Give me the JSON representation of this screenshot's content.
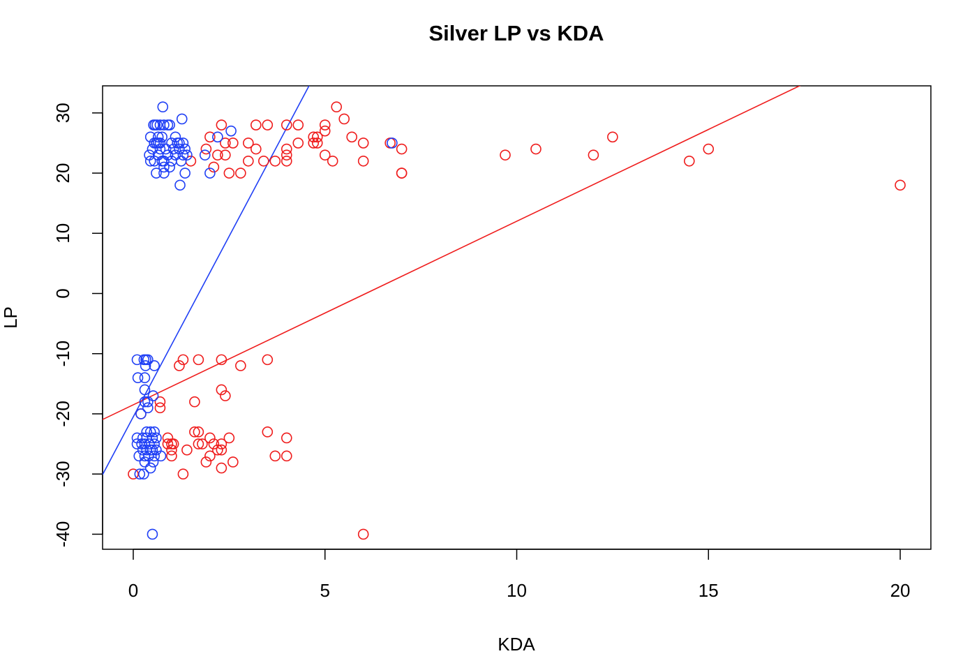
{
  "chart_data": {
    "type": "scatter",
    "title": "Silver LP vs KDA",
    "xlabel": "KDA",
    "ylabel": "LP",
    "xlim": [
      -0.8,
      20.8
    ],
    "ylim": [
      -42.5,
      34.5
    ],
    "x_ticks": [
      0,
      5,
      10,
      15,
      20
    ],
    "y_ticks": [
      -40,
      -30,
      -20,
      -10,
      0,
      10,
      20,
      30
    ],
    "x_tick_labels": [
      "0",
      "5",
      "10",
      "15",
      "20"
    ],
    "y_tick_labels": [
      "-40",
      "-30",
      "-20",
      "-10",
      "0",
      "10",
      "20",
      "30"
    ],
    "grid": false,
    "legend": "none",
    "marker": "open-circle",
    "colors": {
      "blue": "#1f3ff5",
      "red": "#ef1c1c"
    },
    "series": [
      {
        "color": "#1f3ff5",
        "points": [
          [
            0.77,
            31
          ],
          [
            1.27,
            29
          ],
          [
            0.53,
            28
          ],
          [
            0.57,
            28
          ],
          [
            0.62,
            28
          ],
          [
            0.7,
            28
          ],
          [
            0.8,
            28
          ],
          [
            0.9,
            28
          ],
          [
            0.95,
            28
          ],
          [
            2.55,
            27
          ],
          [
            0.45,
            26
          ],
          [
            0.65,
            26
          ],
          [
            0.75,
            26
          ],
          [
            1.1,
            26
          ],
          [
            2.2,
            26
          ],
          [
            0.55,
            25
          ],
          [
            0.6,
            25
          ],
          [
            0.65,
            25
          ],
          [
            0.7,
            25
          ],
          [
            1.0,
            25
          ],
          [
            1.15,
            25
          ],
          [
            1.2,
            25
          ],
          [
            1.3,
            25
          ],
          [
            6.75,
            25
          ],
          [
            0.5,
            24
          ],
          [
            0.7,
            24
          ],
          [
            0.85,
            24
          ],
          [
            1.05,
            24
          ],
          [
            1.2,
            24
          ],
          [
            1.35,
            24
          ],
          [
            0.42,
            23
          ],
          [
            0.65,
            23
          ],
          [
            0.9,
            23
          ],
          [
            1.1,
            23
          ],
          [
            1.3,
            23
          ],
          [
            1.4,
            23
          ],
          [
            1.87,
            23
          ],
          [
            0.45,
            22
          ],
          [
            0.55,
            22
          ],
          [
            0.75,
            22
          ],
          [
            0.8,
            22
          ],
          [
            1.0,
            22
          ],
          [
            1.25,
            22
          ],
          [
            0.8,
            21
          ],
          [
            0.95,
            21
          ],
          [
            0.6,
            20
          ],
          [
            0.8,
            20
          ],
          [
            1.35,
            20
          ],
          [
            2.0,
            20
          ],
          [
            1.22,
            18
          ],
          [
            0.1,
            -11
          ],
          [
            0.28,
            -11
          ],
          [
            0.33,
            -11
          ],
          [
            0.38,
            -11
          ],
          [
            0.32,
            -12
          ],
          [
            0.55,
            -12
          ],
          [
            0.12,
            -14
          ],
          [
            0.3,
            -14
          ],
          [
            0.3,
            -16
          ],
          [
            0.52,
            -17
          ],
          [
            0.3,
            -18
          ],
          [
            0.38,
            -18
          ],
          [
            0.38,
            -19
          ],
          [
            0.2,
            -20
          ],
          [
            0.35,
            -23
          ],
          [
            0.45,
            -23
          ],
          [
            0.55,
            -23
          ],
          [
            0.1,
            -24
          ],
          [
            0.25,
            -24
          ],
          [
            0.35,
            -24
          ],
          [
            0.5,
            -24
          ],
          [
            0.6,
            -24
          ],
          [
            0.1,
            -25
          ],
          [
            0.22,
            -25
          ],
          [
            0.3,
            -25
          ],
          [
            0.42,
            -25
          ],
          [
            0.55,
            -25
          ],
          [
            0.25,
            -26
          ],
          [
            0.35,
            -26
          ],
          [
            0.45,
            -26
          ],
          [
            0.5,
            -26
          ],
          [
            0.6,
            -26
          ],
          [
            0.15,
            -27
          ],
          [
            0.3,
            -27
          ],
          [
            0.4,
            -27
          ],
          [
            0.55,
            -27
          ],
          [
            0.72,
            -27
          ],
          [
            0.3,
            -28
          ],
          [
            0.52,
            -28
          ],
          [
            0.45,
            -29
          ],
          [
            0.17,
            -30
          ],
          [
            0.27,
            -30
          ],
          [
            0.5,
            -40
          ]
        ],
        "fit": {
          "intercept": -20.5,
          "slope": 12.0
        }
      },
      {
        "color": "#ef1c1c",
        "points": [
          [
            5.3,
            31
          ],
          [
            5.5,
            29
          ],
          [
            2.3,
            28
          ],
          [
            3.2,
            28
          ],
          [
            3.5,
            28
          ],
          [
            4.0,
            28
          ],
          [
            4.3,
            28
          ],
          [
            5.0,
            28
          ],
          [
            5.0,
            27
          ],
          [
            2.0,
            26
          ],
          [
            4.7,
            26
          ],
          [
            4.8,
            26
          ],
          [
            5.7,
            26
          ],
          [
            12.5,
            26
          ],
          [
            2.4,
            25
          ],
          [
            2.6,
            25
          ],
          [
            3.0,
            25
          ],
          [
            4.3,
            25
          ],
          [
            4.7,
            25
          ],
          [
            4.8,
            25
          ],
          [
            6.0,
            25
          ],
          [
            6.7,
            25
          ],
          [
            1.9,
            24
          ],
          [
            3.2,
            24
          ],
          [
            4.0,
            24
          ],
          [
            7.0,
            24
          ],
          [
            10.5,
            24
          ],
          [
            15.0,
            24
          ],
          [
            2.2,
            23
          ],
          [
            2.4,
            23
          ],
          [
            4.0,
            23
          ],
          [
            5.0,
            23
          ],
          [
            9.7,
            23
          ],
          [
            12.0,
            23
          ],
          [
            1.5,
            22
          ],
          [
            3.0,
            22
          ],
          [
            3.4,
            22
          ],
          [
            3.7,
            22
          ],
          [
            4.0,
            22
          ],
          [
            5.2,
            22
          ],
          [
            6.0,
            22
          ],
          [
            14.5,
            22
          ],
          [
            2.1,
            21
          ],
          [
            2.5,
            20
          ],
          [
            2.8,
            20
          ],
          [
            7.0,
            20
          ],
          [
            7.0,
            20
          ],
          [
            20.0,
            18
          ],
          [
            1.3,
            -11
          ],
          [
            1.7,
            -11
          ],
          [
            2.3,
            -11
          ],
          [
            3.5,
            -11
          ],
          [
            1.2,
            -12
          ],
          [
            2.8,
            -12
          ],
          [
            2.3,
            -16
          ],
          [
            2.4,
            -17
          ],
          [
            0.7,
            -18
          ],
          [
            1.6,
            -18
          ],
          [
            0.7,
            -19
          ],
          [
            0.2,
            -20
          ],
          [
            1.6,
            -23
          ],
          [
            1.7,
            -23
          ],
          [
            3.5,
            -23
          ],
          [
            0.9,
            -24
          ],
          [
            2.0,
            -24
          ],
          [
            2.5,
            -24
          ],
          [
            4.0,
            -24
          ],
          [
            0.9,
            -25
          ],
          [
            1.0,
            -25
          ],
          [
            1.05,
            -25
          ],
          [
            1.7,
            -25
          ],
          [
            1.8,
            -25
          ],
          [
            2.1,
            -25
          ],
          [
            2.3,
            -25
          ],
          [
            1.0,
            -26
          ],
          [
            1.4,
            -26
          ],
          [
            2.2,
            -26
          ],
          [
            2.3,
            -26
          ],
          [
            1.0,
            -27
          ],
          [
            2.0,
            -27
          ],
          [
            3.7,
            -27
          ],
          [
            4.0,
            -27
          ],
          [
            1.9,
            -28
          ],
          [
            2.6,
            -28
          ],
          [
            2.3,
            -29
          ],
          [
            0.0,
            -30
          ],
          [
            1.3,
            -30
          ],
          [
            6.0,
            -40
          ]
        ],
        "fit": {
          "intercept": -18.5,
          "slope": 3.05
        }
      }
    ]
  }
}
